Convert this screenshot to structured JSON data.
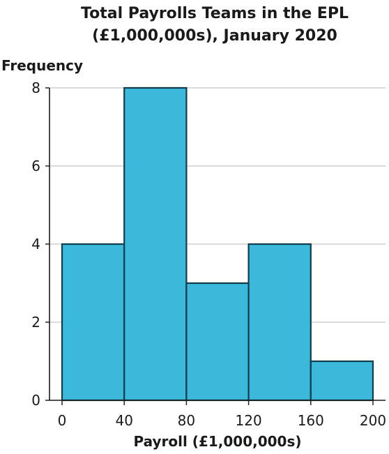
{
  "chart_data": {
    "type": "bar",
    "title_lines": [
      "Total Payrolls Teams in the EPL",
      "(£1,000,000s), January 2020"
    ],
    "xlabel": "Payroll (£1,000,000s)",
    "ylabel": "Frequency",
    "bins": [
      {
        "from": 0,
        "to": 40,
        "value": 4
      },
      {
        "from": 40,
        "to": 80,
        "value": 8
      },
      {
        "from": 80,
        "to": 120,
        "value": 3
      },
      {
        "from": 120,
        "to": 160,
        "value": 4
      },
      {
        "from": 160,
        "to": 200,
        "value": 1
      }
    ],
    "x_ticks": [
      "0",
      "40",
      "80",
      "120",
      "160",
      "200"
    ],
    "y_ticks": [
      "0",
      "2",
      "4",
      "6",
      "8"
    ],
    "xlim": [
      0,
      200
    ],
    "ylim": [
      0,
      8
    ],
    "grid": "horizontal",
    "bar_color": "#3bb8da",
    "bar_edge_color": "#123d4b"
  }
}
